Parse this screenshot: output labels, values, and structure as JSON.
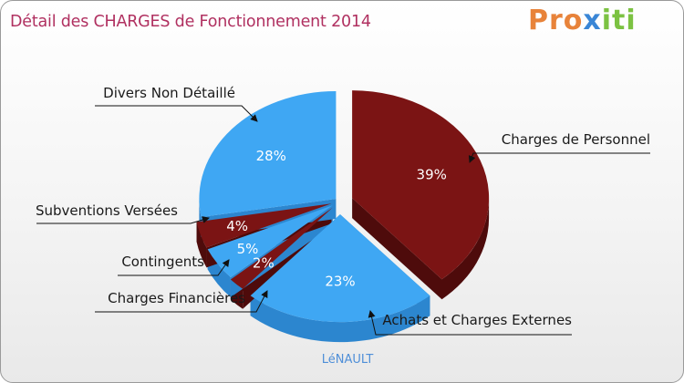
{
  "header": {
    "title": "Détail des CHARGES de Fonctionnement 2014"
  },
  "logo": {
    "part1": "Pro",
    "part2": "x",
    "part3": "iti"
  },
  "commune": "LéNAULT",
  "colors": {
    "blue": "#3fa7f3",
    "blue_side": "#2c86cf",
    "red": "#7b1414",
    "red_side": "#4e0b0b",
    "title": "#b03060"
  },
  "chart_data": {
    "type": "pie",
    "title": "Détail des CHARGES de Fonctionnement 2014",
    "slices": [
      {
        "label": "Charges de Personnel",
        "value": 39,
        "pct_label": "39%",
        "color": "red"
      },
      {
        "label": "Achats et Charges Externes",
        "value": 23,
        "pct_label": "23%",
        "color": "blue"
      },
      {
        "label": "Charges Financières",
        "value": 2,
        "pct_label": "2%",
        "color": "red"
      },
      {
        "label": "Contingents",
        "value": 5,
        "pct_label": "5%",
        "color": "blue"
      },
      {
        "label": "Subventions Versées",
        "value": 4,
        "pct_label": "4%",
        "color": "red"
      },
      {
        "label": "Divers Non Détaillé",
        "value": 28,
        "pct_label": "28%",
        "color": "blue"
      }
    ]
  }
}
